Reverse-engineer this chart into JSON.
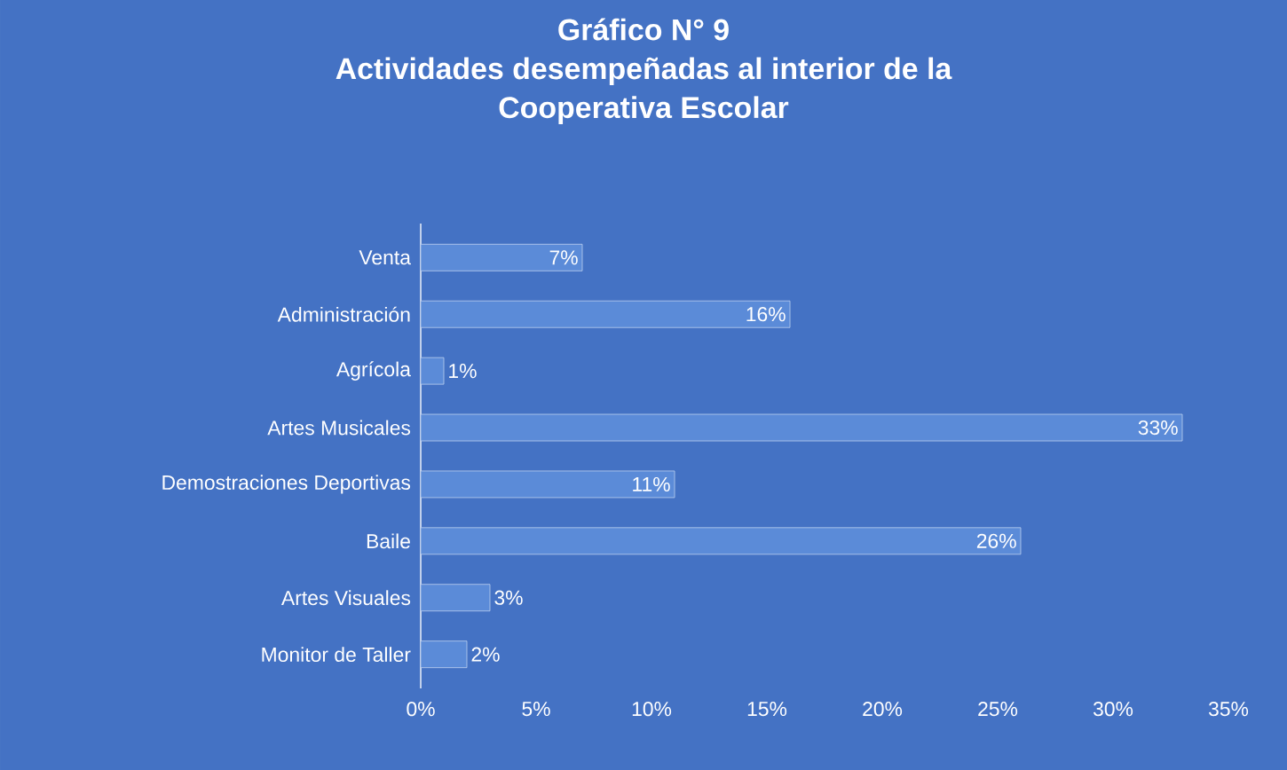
{
  "chart_data": {
    "type": "bar",
    "orientation": "horizontal",
    "title": "Gráfico N° 9\nActividades desempeñadas al interior de la\nCooperativa Escolar",
    "categories": [
      "Venta",
      "Administración",
      "Agrícola",
      "Artes Musicales",
      "Demostraciones Deportivas",
      "Baile",
      "Artes Visuales",
      "Monitor de Taller"
    ],
    "values": [
      7,
      16,
      1,
      33,
      11,
      26,
      3,
      2
    ],
    "value_labels": [
      "7%",
      "16%",
      "1%",
      "33%",
      "11%",
      "26%",
      "3%",
      "2%"
    ],
    "color": "#5b8bd8",
    "xlim": [
      0,
      35
    ],
    "xticks": [
      {
        "value": 0,
        "label": "0%"
      },
      {
        "value": 5,
        "label": "5%"
      },
      {
        "value": 10,
        "label": "10%"
      },
      {
        "value": 15,
        "label": "15%"
      },
      {
        "value": 20,
        "label": "20%"
      },
      {
        "value": 25,
        "label": "25%"
      },
      {
        "value": 30,
        "label": "30%"
      },
      {
        "value": 35,
        "label": "35%"
      }
    ],
    "line_style": "solid"
  }
}
